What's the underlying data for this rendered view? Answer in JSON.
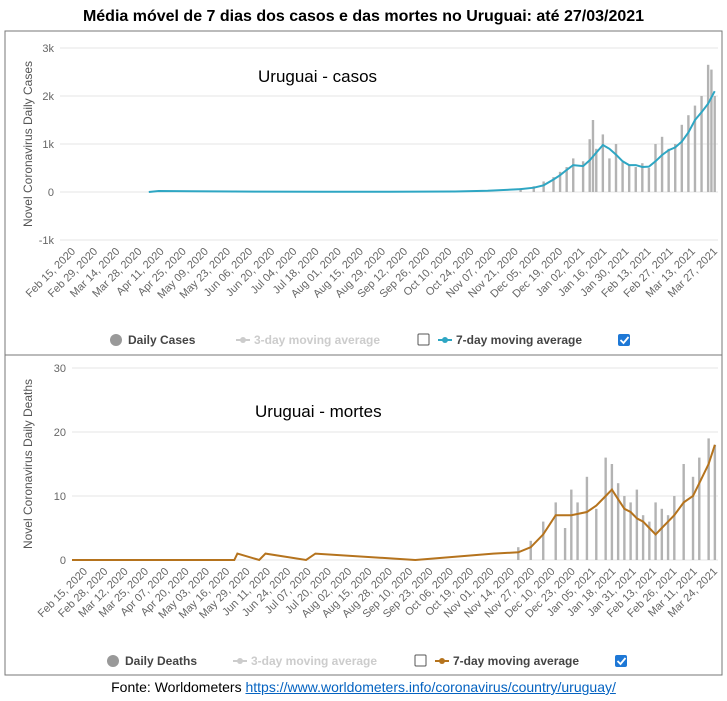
{
  "title": "Média móvel de 7 dias dos casos e das mortes no Uruguai: até 27/03/2021",
  "source": {
    "label": "Fonte: Worldometers",
    "url": "https://www.worldometers.info/coronavirus/country/uruguay/"
  },
  "chart_data": [
    {
      "type": "bar",
      "annotation": "Uruguai - casos",
      "ylabel": "Novel Coronavirus Daily Cases",
      "ylim": [
        -1000,
        3000
      ],
      "yticks": [
        -1000,
        0,
        1000,
        2000,
        3000
      ],
      "ytick_labels": [
        "-1k",
        "0",
        "1k",
        "2k",
        "3k"
      ],
      "date_labels": [
        "Feb 15, 2020",
        "Feb 29, 2020",
        "Mar 14, 2020",
        "Mar 28, 2020",
        "Apr 11, 2020",
        "Apr 25, 2020",
        "May 09, 2020",
        "May 23, 2020",
        "Jun 06, 2020",
        "Jun 20, 2020",
        "Jul 04, 2020",
        "Jul 18, 2020",
        "Aug 01, 2020",
        "Aug 15, 2020",
        "Aug 29, 2020",
        "Sep 12, 2020",
        "Sep 26, 2020",
        "Oct 10, 2020",
        "Oct 24, 2020",
        "Nov 07, 2020",
        "Nov 21, 2020",
        "Dec 05, 2020",
        "Dec 19, 2020",
        "Jan 02, 2021",
        "Jan 16, 2021",
        "Jan 30, 2021",
        "Feb 13, 2021",
        "Feb 27, 2021",
        "Mar 13, 2021",
        "Mar 27, 2021"
      ],
      "legend": {
        "daily": "Daily Cases",
        "ma3": "3-day moving average",
        "ma7": "7-day moving average"
      },
      "series": [
        {
          "name": "7-day moving average",
          "color": "#2ea6c3",
          "points": [
            [
              27,
              0
            ],
            [
              30,
              20
            ],
            [
              40,
              15
            ],
            [
              60,
              8
            ],
            [
              80,
              5
            ],
            [
              100,
              6
            ],
            [
              120,
              10
            ],
            [
              130,
              25
            ],
            [
              140,
              60
            ],
            [
              144,
              90
            ],
            [
              147,
              140
            ],
            [
              150,
              260
            ],
            [
              152,
              350
            ],
            [
              154,
              460
            ],
            [
              156,
              560
            ],
            [
              159,
              540
            ],
            [
              161,
              660
            ],
            [
              163,
              820
            ],
            [
              165,
              980
            ],
            [
              167,
              900
            ],
            [
              169,
              780
            ],
            [
              171,
              640
            ],
            [
              173,
              560
            ],
            [
              175,
              560
            ],
            [
              177,
              520
            ],
            [
              179,
              530
            ],
            [
              181,
              640
            ],
            [
              183,
              770
            ],
            [
              185,
              870
            ],
            [
              187,
              930
            ],
            [
              189,
              1050
            ],
            [
              191,
              1240
            ],
            [
              193,
              1500
            ],
            [
              195,
              1660
            ],
            [
              197,
              1840
            ],
            [
              199,
              2100
            ]
          ]
        },
        {
          "name": "Daily Cases",
          "color": "#b3b3b3",
          "type": "bars",
          "points": [
            [
              140,
              80
            ],
            [
              144,
              120
            ],
            [
              147,
              220
            ],
            [
              150,
              310
            ],
            [
              152,
              420
            ],
            [
              154,
              520
            ],
            [
              156,
              700
            ],
            [
              159,
              640
            ],
            [
              161,
              1100
            ],
            [
              162,
              1500
            ],
            [
              163,
              900
            ],
            [
              165,
              1200
            ],
            [
              167,
              700
            ],
            [
              169,
              1000
            ],
            [
              171,
              620
            ],
            [
              173,
              560
            ],
            [
              175,
              520
            ],
            [
              177,
              600
            ],
            [
              179,
              500
            ],
            [
              181,
              1000
            ],
            [
              183,
              1150
            ],
            [
              185,
              900
            ],
            [
              187,
              1000
            ],
            [
              189,
              1400
            ],
            [
              191,
              1600
            ],
            [
              193,
              1800
            ],
            [
              195,
              2000
            ],
            [
              197,
              2650
            ],
            [
              198,
              2550
            ],
            [
              199,
              2000
            ]
          ]
        }
      ]
    },
    {
      "type": "bar",
      "annotation": "Uruguai - mortes",
      "ylabel": "Novel Coronavirus Daily Deaths",
      "ylim": [
        0,
        30
      ],
      "yticks": [
        0,
        10,
        20,
        30
      ],
      "ytick_labels": [
        "0",
        "10",
        "20",
        "30"
      ],
      "date_labels": [
        "Feb 15, 2020",
        "Feb 28, 2020",
        "Mar 12, 2020",
        "Mar 25, 2020",
        "Apr 07, 2020",
        "Apr 20, 2020",
        "May 03, 2020",
        "May 16, 2020",
        "May 29, 2020",
        "Jun 11, 2020",
        "Jun 24, 2020",
        "Jul 07, 2020",
        "Jul 20, 2020",
        "Aug 02, 2020",
        "Aug 15, 2020",
        "Aug 28, 2020",
        "Sep 10, 2020",
        "Sep 23, 2020",
        "Oct 06, 2020",
        "Oct 19, 2020",
        "Nov 01, 2020",
        "Nov 14, 2020",
        "Nov 27, 2020",
        "Dec 10, 2020",
        "Dec 23, 2020",
        "Jan 05, 2021",
        "Jan 18, 2021",
        "Jan 31, 2021",
        "Feb 13, 2021",
        "Feb 26, 2021",
        "Mar 11, 2021",
        "Mar 24, 2021"
      ],
      "legend": {
        "daily": "Daily Deaths",
        "ma3": "3-day moving average",
        "ma7": "7-day moving average"
      },
      "series": [
        {
          "name": "7-day moving average",
          "color": "#b5731d",
          "points": [
            [
              0,
              0
            ],
            [
              52,
              0
            ],
            [
              53,
              1
            ],
            [
              60,
              0
            ],
            [
              62,
              1
            ],
            [
              75,
              0
            ],
            [
              78,
              1
            ],
            [
              110,
              0
            ],
            [
              135,
              1
            ],
            [
              143,
              1.2
            ],
            [
              147,
              2
            ],
            [
              151,
              4
            ],
            [
              155,
              7
            ],
            [
              160,
              7
            ],
            [
              165,
              7.5
            ],
            [
              168,
              8.5
            ],
            [
              171,
              10
            ],
            [
              173,
              11
            ],
            [
              175,
              9.5
            ],
            [
              177,
              8
            ],
            [
              179,
              7.5
            ],
            [
              181,
              6.5
            ],
            [
              183,
              6
            ],
            [
              185,
              5
            ],
            [
              187,
              4
            ],
            [
              189,
              5
            ],
            [
              191,
              6
            ],
            [
              193,
              7
            ],
            [
              196,
              9
            ],
            [
              199,
              10
            ],
            [
              201,
              12
            ],
            [
              204,
              15
            ],
            [
              206,
              18
            ]
          ]
        },
        {
          "name": "Daily Deaths",
          "color": "#b3b3b3",
          "type": "bars",
          "points": [
            [
              143,
              2
            ],
            [
              147,
              3
            ],
            [
              151,
              6
            ],
            [
              155,
              9
            ],
            [
              158,
              5
            ],
            [
              160,
              11
            ],
            [
              162,
              9
            ],
            [
              165,
              13
            ],
            [
              168,
              8
            ],
            [
              171,
              16
            ],
            [
              173,
              15
            ],
            [
              175,
              12
            ],
            [
              177,
              10
            ],
            [
              179,
              9
            ],
            [
              181,
              11
            ],
            [
              183,
              7
            ],
            [
              185,
              6
            ],
            [
              187,
              9
            ],
            [
              189,
              8
            ],
            [
              191,
              7
            ],
            [
              193,
              10
            ],
            [
              196,
              15
            ],
            [
              199,
              13
            ],
            [
              201,
              16
            ],
            [
              204,
              19
            ],
            [
              206,
              18
            ]
          ]
        }
      ]
    }
  ]
}
